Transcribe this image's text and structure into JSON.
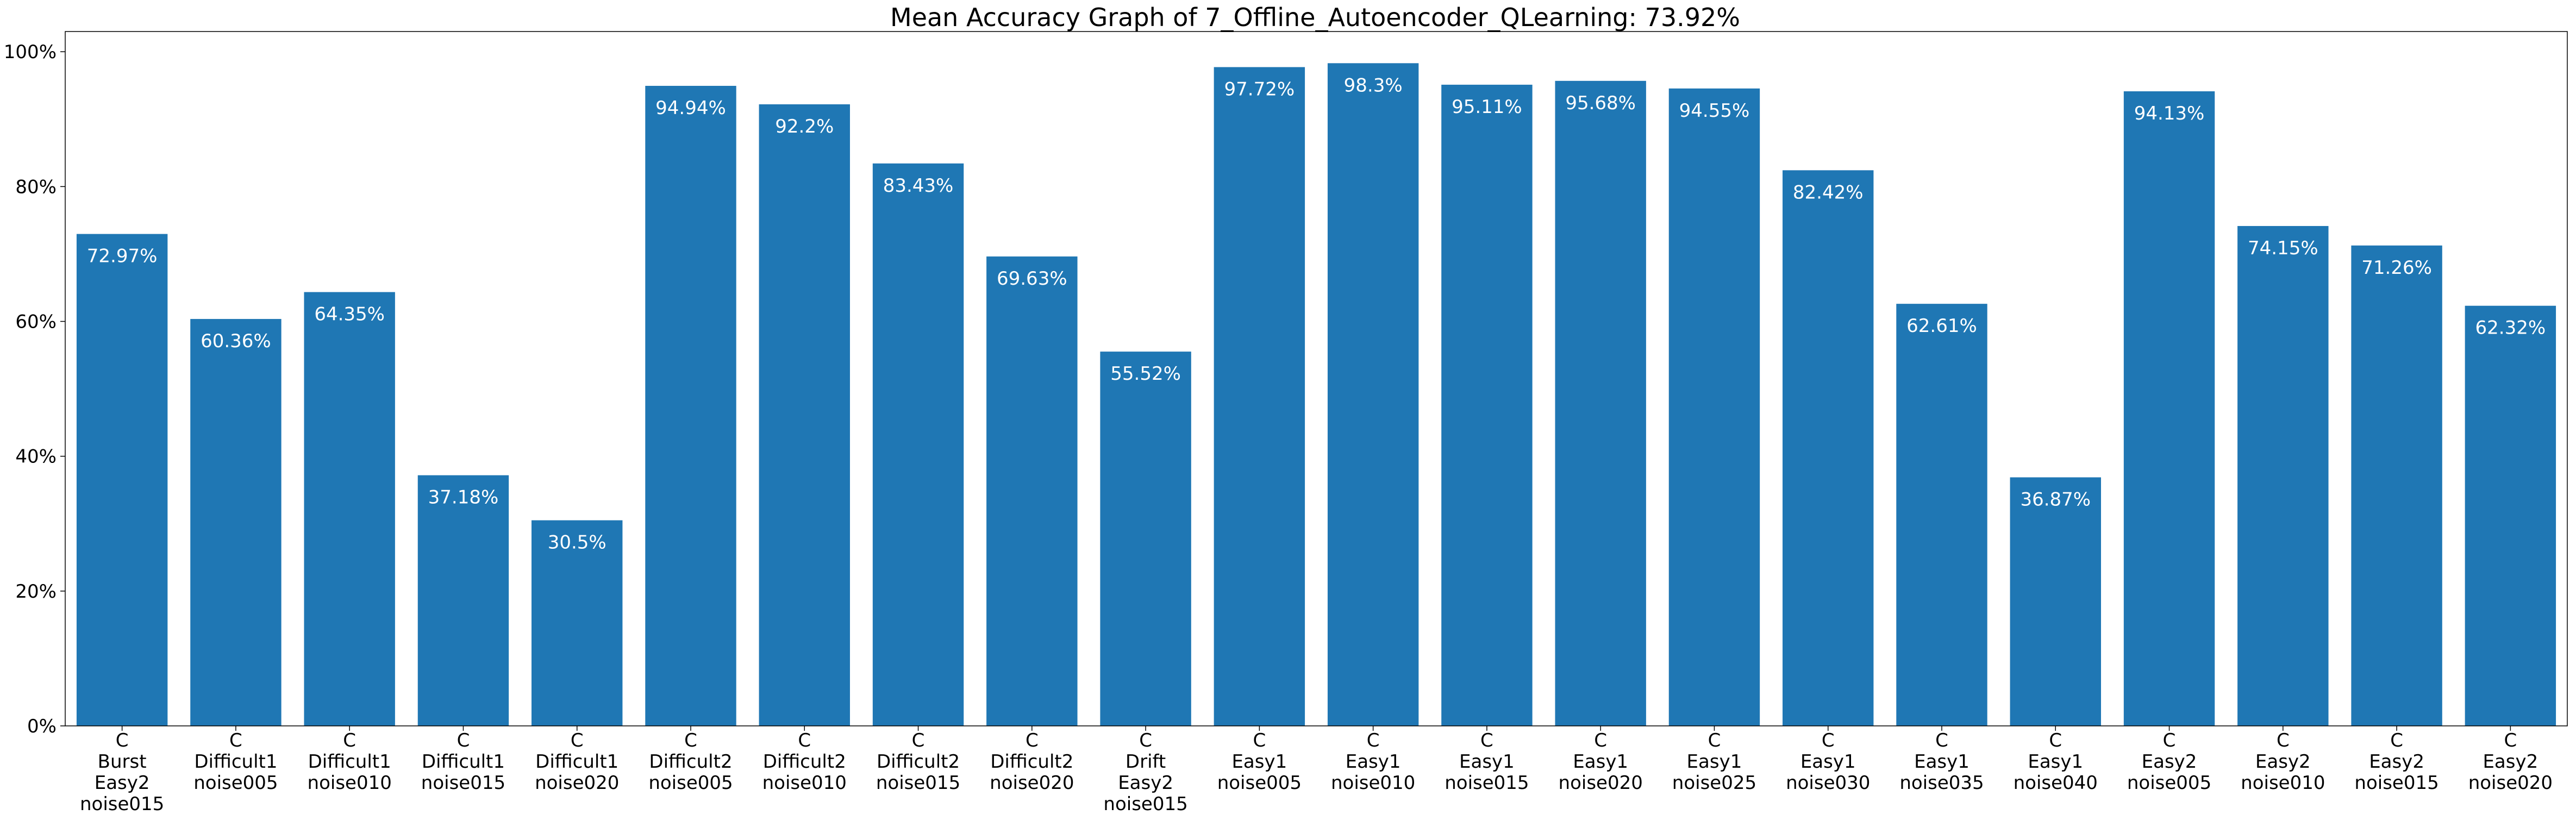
{
  "chart_data": {
    "type": "bar",
    "title": "Mean Accuracy Graph of 7_Offline_Autoencoder_QLearning: 73.92%",
    "xlabel": "",
    "ylabel": "",
    "ylim": [
      0,
      103
    ],
    "yticks": [
      0,
      20,
      40,
      60,
      80,
      100
    ],
    "ytick_labels": [
      "0%",
      "20%",
      "40%",
      "60%",
      "80%",
      "100%"
    ],
    "grid": false,
    "bar_color": "#1f77b4",
    "label_color": "#ffffff",
    "categories": [
      [
        "C",
        "Burst",
        "Easy2",
        "noise015"
      ],
      [
        "C",
        "Difficult1",
        "noise005"
      ],
      [
        "C",
        "Difficult1",
        "noise010"
      ],
      [
        "C",
        "Difficult1",
        "noise015"
      ],
      [
        "C",
        "Difficult1",
        "noise020"
      ],
      [
        "C",
        "Difficult2",
        "noise005"
      ],
      [
        "C",
        "Difficult2",
        "noise010"
      ],
      [
        "C",
        "Difficult2",
        "noise015"
      ],
      [
        "C",
        "Difficult2",
        "noise020"
      ],
      [
        "C",
        "Drift",
        "Easy2",
        "noise015"
      ],
      [
        "C",
        "Easy1",
        "noise005"
      ],
      [
        "C",
        "Easy1",
        "noise010"
      ],
      [
        "C",
        "Easy1",
        "noise015"
      ],
      [
        "C",
        "Easy1",
        "noise020"
      ],
      [
        "C",
        "Easy1",
        "noise025"
      ],
      [
        "C",
        "Easy1",
        "noise030"
      ],
      [
        "C",
        "Easy1",
        "noise035"
      ],
      [
        "C",
        "Easy1",
        "noise040"
      ],
      [
        "C",
        "Easy2",
        "noise005"
      ],
      [
        "C",
        "Easy2",
        "noise010"
      ],
      [
        "C",
        "Easy2",
        "noise015"
      ],
      [
        "C",
        "Easy2",
        "noise020"
      ]
    ],
    "values": [
      72.97,
      60.36,
      64.35,
      37.18,
      30.5,
      94.94,
      92.2,
      83.43,
      69.63,
      55.52,
      97.72,
      98.3,
      95.11,
      95.68,
      94.55,
      82.42,
      62.61,
      36.87,
      94.13,
      74.15,
      71.26,
      62.32
    ],
    "data_labels": [
      "72.97%",
      "60.36%",
      "64.35%",
      "37.18%",
      "30.5%",
      "94.94%",
      "92.2%",
      "83.43%",
      "69.63%",
      "55.52%",
      "97.72%",
      "98.3%",
      "95.11%",
      "95.68%",
      "94.55%",
      "82.42%",
      "62.61%",
      "36.87%",
      "94.13%",
      "74.15%",
      "71.26%",
      "62.32%"
    ]
  }
}
